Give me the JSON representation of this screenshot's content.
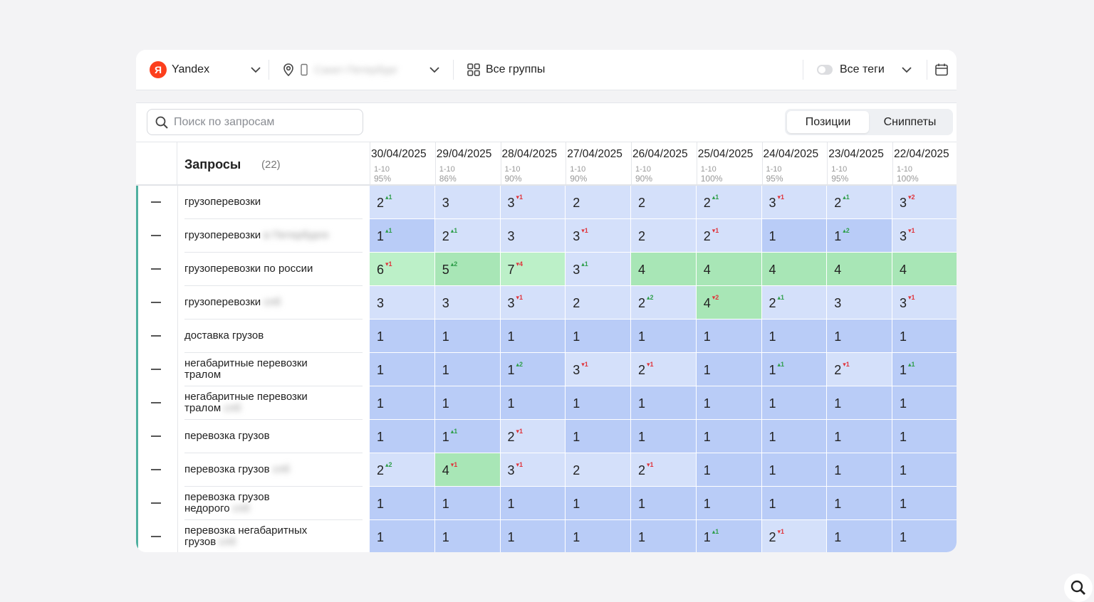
{
  "toolbar": {
    "engine_logo": "Я",
    "engine": "Yandex",
    "region": "Санкт-Петербург",
    "groups": "Все группы",
    "tags": "Все теги"
  },
  "search": {
    "placeholder": "Поиск по запросам"
  },
  "tabs": [
    {
      "label": "Позиции",
      "active": true
    },
    {
      "label": "Сниппеты",
      "active": false
    }
  ],
  "table": {
    "title": "Запросы",
    "count": "(22)",
    "columns": [
      {
        "date": "30/04/2025",
        "range": "1-10",
        "pct": "95%"
      },
      {
        "date": "29/04/2025",
        "range": "1-10",
        "pct": "86%"
      },
      {
        "date": "28/04/2025",
        "range": "1-10",
        "pct": "90%"
      },
      {
        "date": "27/04/2025",
        "range": "1-10",
        "pct": "90%"
      },
      {
        "date": "26/04/2025",
        "range": "1-10",
        "pct": "90%"
      },
      {
        "date": "25/04/2025",
        "range": "1-10",
        "pct": "100%"
      },
      {
        "date": "24/04/2025",
        "range": "1-10",
        "pct": "95%"
      },
      {
        "date": "23/04/2025",
        "range": "1-10",
        "pct": "95%"
      },
      {
        "date": "22/04/2025",
        "range": "1-10",
        "pct": "100%"
      }
    ],
    "rows": [
      {
        "q1": "грузоперевозки",
        "q2": "",
        "blur": "",
        "ext": false,
        "cells": [
          [
            "2",
            "+1"
          ],
          [
            "3",
            ""
          ],
          [
            "3",
            "-1"
          ],
          [
            "2",
            ""
          ],
          [
            "2",
            ""
          ],
          [
            "2",
            "+1"
          ],
          [
            "3",
            "-1"
          ],
          [
            "2",
            "+1"
          ],
          [
            "3",
            "-2"
          ]
        ]
      },
      {
        "q1": "грузоперевозки",
        "q2": "",
        "blur": "в Петербурге",
        "ext": true,
        "cells": [
          [
            "1",
            "+1"
          ],
          [
            "2",
            "+1"
          ],
          [
            "3",
            ""
          ],
          [
            "3",
            "-1"
          ],
          [
            "2",
            ""
          ],
          [
            "2",
            "-1"
          ],
          [
            "1",
            ""
          ],
          [
            "1",
            "+2"
          ],
          [
            "3",
            "-1"
          ]
        ]
      },
      {
        "q1": "грузоперевозки по россии",
        "q2": "",
        "blur": "",
        "ext": false,
        "cells": [
          [
            "6",
            "-1"
          ],
          [
            "5",
            "+2"
          ],
          [
            "7",
            "-4"
          ],
          [
            "3",
            "+1"
          ],
          [
            "4",
            ""
          ],
          [
            "4",
            ""
          ],
          [
            "4",
            ""
          ],
          [
            "4",
            ""
          ],
          [
            "4",
            ""
          ]
        ]
      },
      {
        "q1": "грузоперевозки",
        "q2": "",
        "blur": "спб",
        "ext": false,
        "cells": [
          [
            "3",
            ""
          ],
          [
            "3",
            ""
          ],
          [
            "3",
            "-1"
          ],
          [
            "2",
            ""
          ],
          [
            "2",
            "+2"
          ],
          [
            "4",
            "-2"
          ],
          [
            "2",
            "+1"
          ],
          [
            "3",
            ""
          ],
          [
            "3",
            "-1"
          ]
        ]
      },
      {
        "q1": "доставка грузов",
        "q2": "",
        "blur": "",
        "ext": false,
        "cells": [
          [
            "1",
            ""
          ],
          [
            "1",
            ""
          ],
          [
            "1",
            ""
          ],
          [
            "1",
            ""
          ],
          [
            "1",
            ""
          ],
          [
            "1",
            ""
          ],
          [
            "1",
            ""
          ],
          [
            "1",
            ""
          ],
          [
            "1",
            ""
          ]
        ]
      },
      {
        "q1": "негабаритные перевозки",
        "q2": "тралом",
        "blur": "",
        "ext": false,
        "cells": [
          [
            "1",
            ""
          ],
          [
            "1",
            ""
          ],
          [
            "1",
            "+2"
          ],
          [
            "3",
            "-1"
          ],
          [
            "2",
            "-1"
          ],
          [
            "1",
            ""
          ],
          [
            "1",
            "+1"
          ],
          [
            "2",
            "-1"
          ],
          [
            "1",
            "+1"
          ]
        ]
      },
      {
        "q1": "негабаритные перевозки",
        "q2": "тралом",
        "blur": "спб",
        "ext": false,
        "cells": [
          [
            "1",
            ""
          ],
          [
            "1",
            ""
          ],
          [
            "1",
            ""
          ],
          [
            "1",
            ""
          ],
          [
            "1",
            ""
          ],
          [
            "1",
            ""
          ],
          [
            "1",
            ""
          ],
          [
            "1",
            ""
          ],
          [
            "1",
            ""
          ]
        ]
      },
      {
        "q1": "перевозка грузов",
        "q2": "",
        "blur": "",
        "ext": false,
        "cells": [
          [
            "1",
            ""
          ],
          [
            "1",
            "+1"
          ],
          [
            "2",
            "-1"
          ],
          [
            "1",
            ""
          ],
          [
            "1",
            ""
          ],
          [
            "1",
            ""
          ],
          [
            "1",
            ""
          ],
          [
            "1",
            ""
          ],
          [
            "1",
            ""
          ]
        ]
      },
      {
        "q1": "перевозка грузов",
        "q2": "",
        "blur": "спб",
        "ext": false,
        "cells": [
          [
            "2",
            "+2"
          ],
          [
            "4",
            "-1"
          ],
          [
            "3",
            "-1"
          ],
          [
            "2",
            ""
          ],
          [
            "2",
            "-1"
          ],
          [
            "1",
            ""
          ],
          [
            "1",
            ""
          ],
          [
            "1",
            ""
          ],
          [
            "1",
            ""
          ]
        ]
      },
      {
        "q1": "перевозка грузов",
        "q2": "недорого",
        "blur": "спб",
        "ext": false,
        "cells": [
          [
            "1",
            ""
          ],
          [
            "1",
            ""
          ],
          [
            "1",
            ""
          ],
          [
            "1",
            ""
          ],
          [
            "1",
            ""
          ],
          [
            "1",
            ""
          ],
          [
            "1",
            ""
          ],
          [
            "1",
            ""
          ],
          [
            "1",
            ""
          ]
        ]
      },
      {
        "q1": "перевозка негабаритных",
        "q2": "грузов",
        "blur": "спб",
        "ext": false,
        "cells": [
          [
            "1",
            ""
          ],
          [
            "1",
            ""
          ],
          [
            "1",
            ""
          ],
          [
            "1",
            ""
          ],
          [
            "1",
            ""
          ],
          [
            "1",
            "+1"
          ],
          [
            "2",
            "-1"
          ],
          [
            "1",
            ""
          ],
          [
            "1",
            ""
          ]
        ]
      }
    ]
  },
  "colors": {
    "pos1": "#b9ccf7",
    "pos2_3": "#d4e0fa",
    "pos4_5": "#a8e6b6",
    "pos6_10": "#bcf0c8",
    "up": "#2e9e4a",
    "down": "#e0343b",
    "accent": "#4fb0a0"
  }
}
